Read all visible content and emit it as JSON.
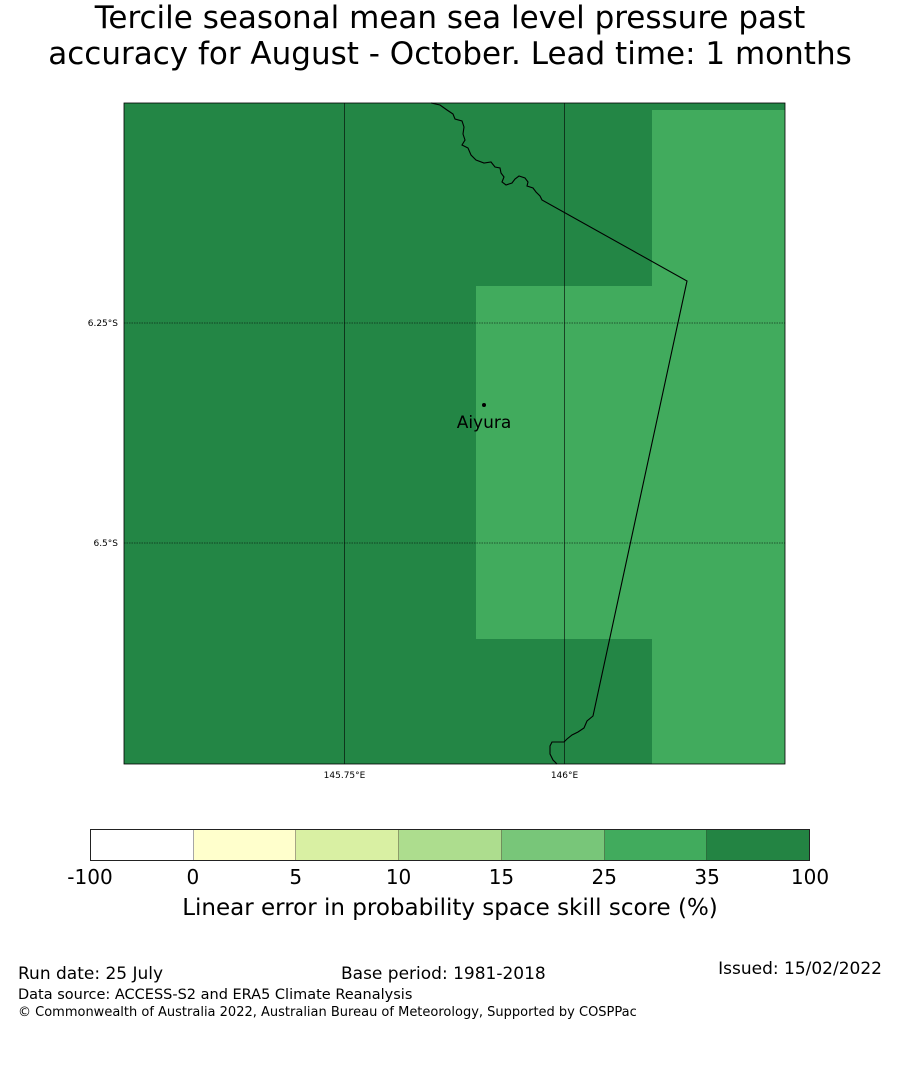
{
  "title": {
    "line1": "Tercile seasonal mean sea level pressure past",
    "line2": "accuracy for August - October. Lead time: 1 months"
  },
  "map": {
    "lon_labels": [
      "145.75°E",
      "146°E"
    ],
    "lat_labels": [
      "6.25°S",
      "6.5°S"
    ],
    "place": "Aiyura",
    "colors": {
      "dark": "#238645",
      "light": "#41ab5d",
      "border": "#000000"
    },
    "regions": [
      {
        "name": "skill-35-100",
        "level": "35 - 100"
      },
      {
        "name": "skill-25-35",
        "level": "25 - 35"
      }
    ]
  },
  "colorbar": {
    "colors": [
      "#ffffff",
      "#ffffcc",
      "#d9f0a3",
      "#addd8e",
      "#78c679",
      "#41ab5d",
      "#238443"
    ],
    "ticks": [
      "-100",
      "0",
      "5",
      "10",
      "15",
      "25",
      "35",
      "100"
    ],
    "label": "Linear error in probability space skill score (%)"
  },
  "footer": {
    "run_date": "Run date: 25 July",
    "base_period": "Base period: 1981-2018",
    "issued": "Issued: 15/02/2022",
    "data_source": "Data source: ACCESS-S2 and ERA5 Climate Reanalysis",
    "copyright": "© Commonwealth of Australia 2022, Australian Bureau of Meteorology, Supported by COSPPac"
  }
}
